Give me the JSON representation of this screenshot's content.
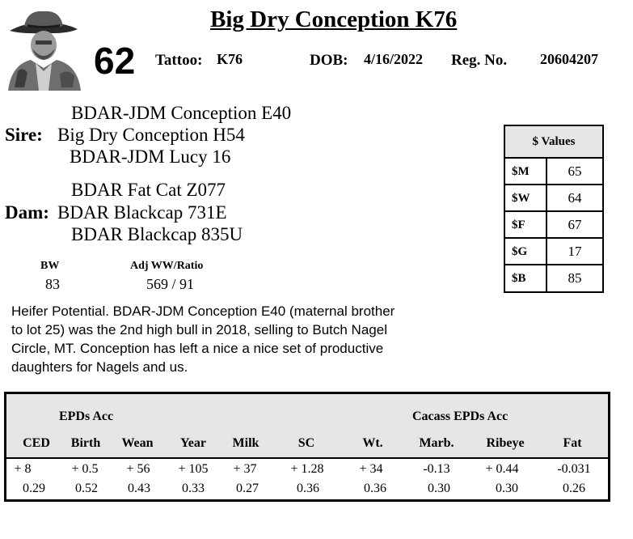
{
  "title": "Big Dry Conception K76",
  "lot_number": "62",
  "header": {
    "tattoo_label": "Tattoo:",
    "tattoo_value": "K76",
    "dob_label": "DOB:",
    "dob_value": "4/16/2022",
    "reg_label": "Reg. No.",
    "reg_value": "20604207"
  },
  "pedigree": {
    "sire_label": "Sire:",
    "sire_sire": "BDAR-JDM Conception E40",
    "sire": "Big Dry Conception H54",
    "sire_dam": "BDAR-JDM Lucy 16",
    "dam_label": "Dam:",
    "dam_sire": "BDAR Fat Cat Z077",
    "dam": "BDAR Blackcap 731E",
    "dam_dam": "BDAR Blackcap 835U"
  },
  "stats": {
    "bw_label": "BW",
    "bw_value": "83",
    "ww_label": "Adj WW/Ratio",
    "ww_value": "569 / 91"
  },
  "dollar_values": {
    "title": "$ Values",
    "rows": [
      {
        "label": "$M",
        "value": "65"
      },
      {
        "label": "$W",
        "value": "64"
      },
      {
        "label": "$F",
        "value": "67"
      },
      {
        "label": "$G",
        "value": "17"
      },
      {
        "label": "$B",
        "value": "85"
      }
    ]
  },
  "description": "Heifer Potential.  BDAR-JDM Conception E40 (maternal brother to lot 25) was the 2nd high bull in 2018, selling to Butch Nagel Circle, MT.  Conception has left a nice a nice set of productive daughters for Nagels and us.",
  "epds": {
    "group1_label": "EPDs   Acc",
    "group2_label": "Cacass EPDs    Acc",
    "columns": [
      "CED",
      "Birth",
      "Wean",
      "Year",
      "Milk",
      "SC",
      "Wt.",
      "Marb.",
      "Ribeye",
      "Fat"
    ],
    "values": [
      "+ 8",
      "+ 0.5",
      "+ 56",
      "+ 105",
      "+ 37",
      "+ 1.28",
      "+ 34",
      "-0.13",
      "+ 0.44",
      "-0.031"
    ],
    "accuracy": [
      "0.29",
      "0.52",
      "0.43",
      "0.33",
      "0.27",
      "0.36",
      "0.36",
      "0.30",
      "0.30",
      "0.26"
    ]
  },
  "logo_icon": "cowboy-portrait-icon"
}
